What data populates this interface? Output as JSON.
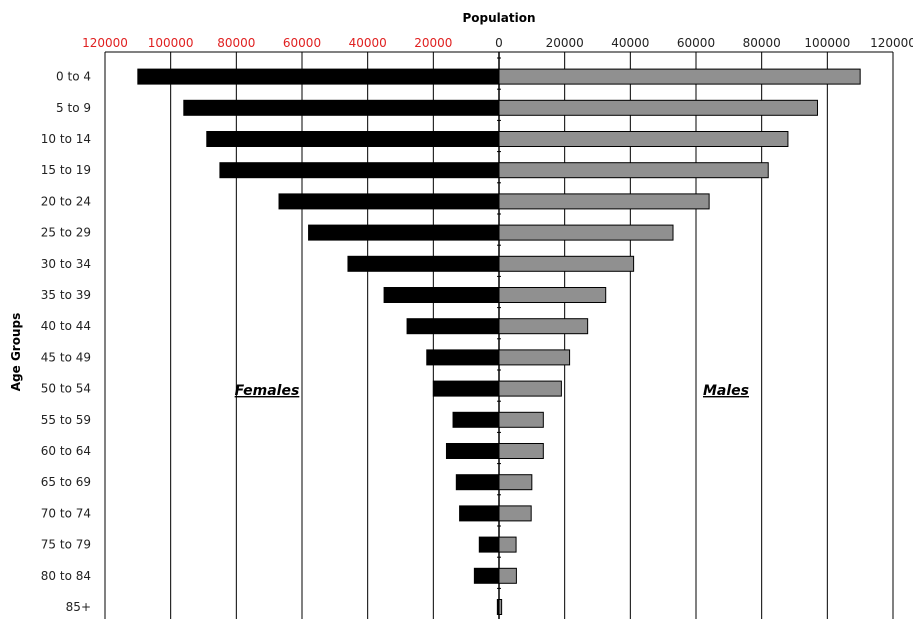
{
  "chart_data": {
    "type": "bar",
    "orientation": "horizontal",
    "layout": "population-pyramid",
    "xlabel": "Population",
    "ylabel": "Age Groups",
    "xlim": [
      -120000,
      120000
    ],
    "x_ticks_left": [
      "120000",
      "100000",
      "80000",
      "60000",
      "40000",
      "20000"
    ],
    "x_ticks_right": [
      "0",
      "20000",
      "40000",
      "60000",
      "80000",
      "100000",
      "120000"
    ],
    "categories": [
      "0 to 4",
      "5 to 9",
      "10 to 14",
      "15 to 19",
      "20 to 24",
      "25 to 29",
      "30 to 34",
      "35 to 39",
      "40 to 44",
      "45 to 49",
      "50 to 54",
      "55 to 59",
      "60 to 64",
      "65 to 69",
      "70 to 74",
      "75 to 79",
      "80 to 84",
      "85+"
    ],
    "series": [
      {
        "name": "Females",
        "color": "#000000",
        "values": [
          110000,
          96000,
          89000,
          85000,
          67000,
          58000,
          46000,
          35000,
          28000,
          22000,
          20000,
          14000,
          16000,
          13000,
          12000,
          6000,
          7500,
          500
        ]
      },
      {
        "name": "Males",
        "color": "#909090",
        "values": [
          110000,
          97000,
          88000,
          82000,
          64000,
          53000,
          41000,
          32500,
          27000,
          21500,
          19000,
          13500,
          13500,
          10000,
          9800,
          5200,
          5300,
          800
        ]
      }
    ],
    "grid": "vertical",
    "accent_left_tick_color": "#e02020"
  }
}
